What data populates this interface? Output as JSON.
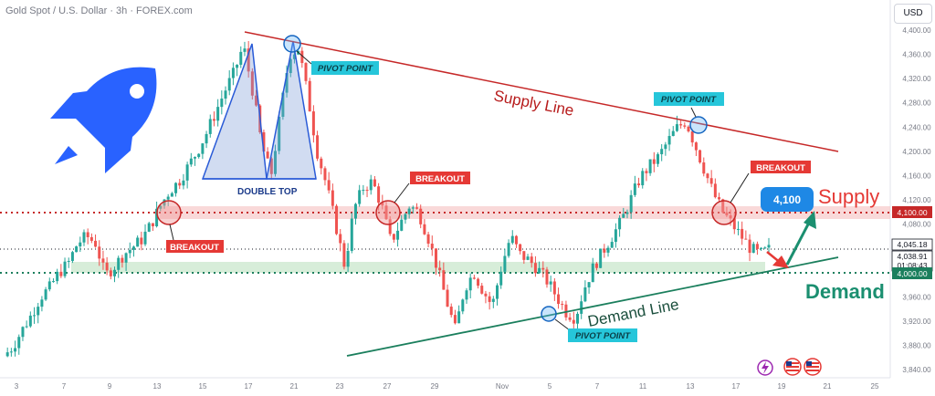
{
  "header": {
    "title": "Gold Spot / U.S. Dollar · 3h · FOREX.com",
    "currency": "USD"
  },
  "colors": {
    "bull": "#26a69a",
    "bear": "#ef5350",
    "supply": "#c62828",
    "demand": "#1b7f5d",
    "pivot": "#1e88e5",
    "badge_blue": "#1e88e5",
    "breakout_red": "#e53935",
    "pivot_label": "#26c6da"
  },
  "icons": {
    "rocket": "rocket-icon",
    "flash": "flash-icon",
    "flag": "us-flag-icon"
  },
  "chart_data": {
    "type": "candlestick",
    "title": "Gold Spot / U.S. Dollar · 3h · FOREX.com",
    "ylim": [
      3830,
      4420
    ],
    "y_ticks": [
      "4,400.00",
      "4,360.00",
      "4,320.00",
      "4,280.00",
      "4,240.00",
      "4,200.00",
      "4,160.00",
      "4,120.00",
      "4,080.00",
      "4,040.00",
      "4,000.00",
      "3,960.00",
      "3,920.00",
      "3,880.00",
      "3,840.00"
    ],
    "y_tick_values": [
      4400,
      4360,
      4320,
      4280,
      4240,
      4200,
      4160,
      4120,
      4080,
      4040,
      4000,
      3960,
      3920,
      3880,
      3840
    ],
    "x_ticks": [
      "3",
      "7",
      "9",
      "13",
      "15",
      "17",
      "21",
      "23",
      "27",
      "29",
      "Nov",
      "5",
      "7",
      "11",
      "13",
      "17",
      "19",
      "21",
      "25"
    ],
    "close_path": [
      3862,
      3878,
      3905,
      3930,
      3960,
      3975,
      4000,
      4015,
      4048,
      4060,
      4048,
      3995,
      4010,
      4030,
      4042,
      4055,
      4080,
      4110,
      4135,
      4150,
      4175,
      4200,
      4230,
      4265,
      4300,
      4330,
      4375,
      4300,
      4210,
      4160,
      4260,
      4360,
      4370,
      4290,
      4200,
      4145,
      4080,
      4010,
      4105,
      4140,
      4150,
      4110,
      4050,
      4080,
      4110,
      4100,
      4060,
      4010,
      3955,
      3905,
      3975,
      4000,
      3970,
      3945,
      4010,
      4060,
      4030,
      4020,
      4005,
      3985,
      3960,
      3935,
      3925,
      3975,
      4010,
      4035,
      4060,
      4085,
      4120,
      4155,
      4175,
      4190,
      4215,
      4238,
      4250,
      4210,
      4170,
      4130,
      4100,
      4080,
      4060,
      4040,
      4030,
      4038
    ],
    "last_price": "4,045.18",
    "current_price": "4,038.91",
    "countdown": "01:08:43",
    "levels": [
      {
        "value": 4100,
        "label": "4,100.00",
        "style": "supply-zone"
      },
      {
        "value": 4000,
        "label": "4,000.00",
        "style": "demand-zone"
      }
    ]
  },
  "annotations": {
    "supply_line": "Supply Line",
    "demand_line": "Demand Line",
    "pivot_point": "PIVOT POINT",
    "breakout": "BREAKOUT",
    "double_top": "DOUBLE TOP",
    "supply": "Supply",
    "demand": "Demand",
    "target": "4,100"
  }
}
